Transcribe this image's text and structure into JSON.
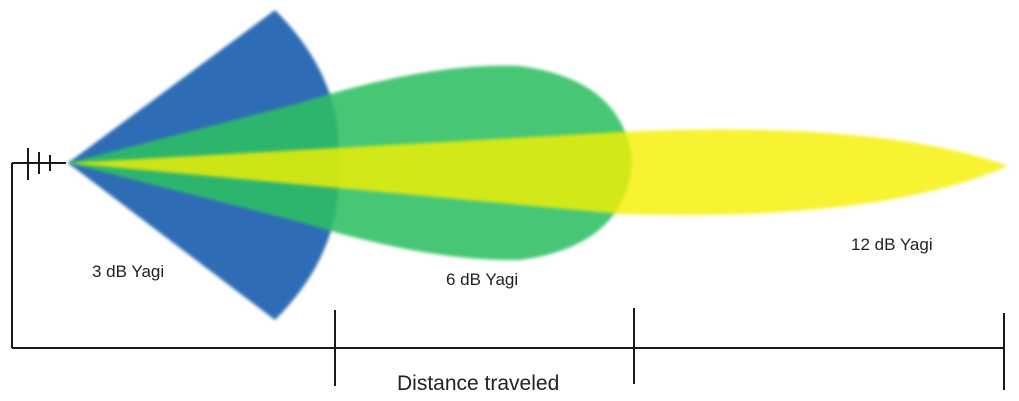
{
  "labels": {
    "yagi_3db": "3 dB Yagi",
    "yagi_6db": "6 dB Yagi",
    "yagi_12db": "12 dB Yagi",
    "distance": "Distance traveled"
  },
  "colors": {
    "yagi_3db": "#2f6db5",
    "yagi_6db": "#2fbf63",
    "yagi_12db": "#f5f000",
    "lines": "#1a1a1a"
  }
}
